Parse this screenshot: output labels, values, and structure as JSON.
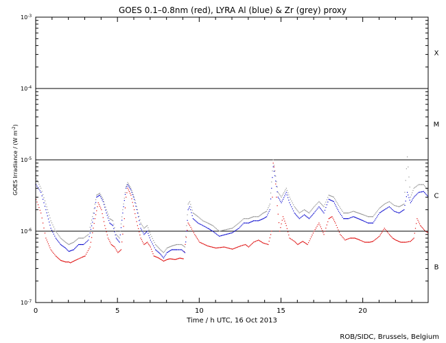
{
  "chart_data": {
    "type": "scatter",
    "title": "GOES 0.1–0.8nm (red), LYRA Al (blue) & Zr (grey) proxy",
    "xlabel": "Time / h UTC, 16 Oct 2013",
    "ylabel_base": "GOES Irradiance / (W m",
    "ylabel_sup": "-2",
    "ylabel_close": ")",
    "credit": "ROB/SIDC, Brussels, Belgium",
    "xlim": [
      0,
      24
    ],
    "ylim": [
      1e-07,
      0.001
    ],
    "yscale": "log",
    "x_ticks": [
      {
        "value": 0,
        "label": "0"
      },
      {
        "value": 5,
        "label": "5"
      },
      {
        "value": 10,
        "label": "10"
      },
      {
        "value": 15,
        "label": "15"
      },
      {
        "value": 20,
        "label": "20"
      }
    ],
    "y_ticks": [
      {
        "value": 1e-07,
        "base": "10",
        "exp": "-7"
      },
      {
        "value": 1e-06,
        "base": "10",
        "exp": "-6"
      },
      {
        "value": 1e-05,
        "base": "10",
        "exp": "-5"
      },
      {
        "value": 0.0001,
        "base": "10",
        "exp": "-4"
      },
      {
        "value": 0.001,
        "base": "10",
        "exp": "-3"
      }
    ],
    "flare_classes": [
      {
        "label": "B",
        "value": 3.2e-07
      },
      {
        "label": "C",
        "value": 3.2e-06
      },
      {
        "label": "M",
        "value": 3.2e-05
      },
      {
        "label": "X",
        "value": 0.00032
      }
    ],
    "threshold_lines": [
      1e-06,
      1e-05,
      0.0001
    ],
    "series": [
      {
        "name": "GOES 0.1–0.8nm",
        "color": "#dd0000",
        "points": [
          [
            0.0,
            2.8e-06
          ],
          [
            0.3,
            1.8e-06
          ],
          [
            0.6,
            8e-07
          ],
          [
            0.9,
            5.5e-07
          ],
          [
            1.2,
            4.5e-07
          ],
          [
            1.5,
            3.9e-07
          ],
          [
            1.8,
            3.7e-07
          ],
          [
            2.0,
            3.7e-07
          ],
          [
            2.1,
            3.6e-07
          ],
          [
            2.3,
            3.8e-07
          ],
          [
            2.5,
            4e-07
          ],
          [
            2.8,
            4.3e-07
          ],
          [
            3.0,
            4.5e-07
          ],
          [
            3.3,
            6e-07
          ],
          [
            3.6,
            1.5e-06
          ],
          [
            3.8,
            2.5e-06
          ],
          [
            4.0,
            2e-06
          ],
          [
            4.2,
            1.2e-06
          ],
          [
            4.4,
            8e-07
          ],
          [
            4.6,
            6.5e-07
          ],
          [
            4.8,
            6e-07
          ],
          [
            5.0,
            5e-07
          ],
          [
            5.2,
            5.5e-07
          ],
          [
            5.4,
            1.5e-06
          ],
          [
            5.5,
            3e-06
          ],
          [
            5.6,
            4e-06
          ],
          [
            5.8,
            3.2e-06
          ],
          [
            6.0,
            2e-06
          ],
          [
            6.2,
            1.2e-06
          ],
          [
            6.4,
            8e-07
          ],
          [
            6.6,
            6.5e-07
          ],
          [
            6.8,
            7e-07
          ],
          [
            7.0,
            6e-07
          ],
          [
            7.2,
            4.5e-07
          ],
          [
            7.5,
            4.2e-07
          ],
          [
            7.8,
            3.8e-07
          ],
          [
            8.0,
            4e-07
          ],
          [
            8.2,
            4.1e-07
          ],
          [
            8.5,
            4e-07
          ],
          [
            8.8,
            4.2e-07
          ],
          [
            9.0,
            4.1e-07
          ],
          [
            9.3,
            1.3e-06
          ],
          [
            9.4,
            1.2e-06
          ],
          [
            9.7,
            9e-07
          ],
          [
            10.0,
            7e-07
          ],
          [
            10.5,
            6.2e-07
          ],
          [
            11.0,
            5.8e-07
          ],
          [
            11.5,
            6e-07
          ],
          [
            12.0,
            5.6e-07
          ],
          [
            12.5,
            6.2e-07
          ],
          [
            12.8,
            6.5e-07
          ],
          [
            13.0,
            6e-07
          ],
          [
            13.3,
            7e-07
          ],
          [
            13.6,
            7.5e-07
          ],
          [
            13.9,
            6.8e-07
          ],
          [
            14.2,
            6.5e-07
          ],
          [
            14.4,
            1e-06
          ],
          [
            14.5,
            9e-06
          ],
          [
            14.6,
            7e-06
          ],
          [
            14.7,
            3e-06
          ],
          [
            14.9,
            1e-06
          ],
          [
            15.1,
            1.6e-06
          ],
          [
            15.3,
            1.2e-06
          ],
          [
            15.5,
            8e-07
          ],
          [
            15.8,
            7.2e-07
          ],
          [
            16.0,
            6.5e-07
          ],
          [
            16.3,
            7.2e-07
          ],
          [
            16.6,
            6.5e-07
          ],
          [
            17.0,
            1e-06
          ],
          [
            17.3,
            1.3e-06
          ],
          [
            17.6,
            9e-07
          ],
          [
            17.9,
            1.5e-06
          ],
          [
            18.1,
            1.6e-06
          ],
          [
            18.3,
            1.3e-06
          ],
          [
            18.6,
            9e-07
          ],
          [
            18.9,
            7.5e-07
          ],
          [
            19.2,
            8e-07
          ],
          [
            19.5,
            8e-07
          ],
          [
            19.8,
            7.5e-07
          ],
          [
            20.1,
            7e-07
          ],
          [
            20.4,
            7e-07
          ],
          [
            20.6,
            7.2e-07
          ],
          [
            21.0,
            8.5e-07
          ],
          [
            21.3,
            1.1e-06
          ],
          [
            21.6,
            9e-07
          ],
          [
            21.8,
            8e-07
          ],
          [
            22.0,
            7.5e-07
          ],
          [
            22.3,
            7e-07
          ],
          [
            22.6,
            7e-07
          ],
          [
            22.9,
            7.2e-07
          ],
          [
            23.1,
            8e-07
          ],
          [
            23.3,
            1.5e-06
          ],
          [
            23.5,
            1.2e-06
          ],
          [
            23.8,
            1e-06
          ],
          [
            24.0,
            9.5e-07
          ]
        ]
      },
      {
        "name": "LYRA Al",
        "color": "#0000cc",
        "points": [
          [
            0.0,
            4.5e-06
          ],
          [
            0.3,
            3.5e-06
          ],
          [
            0.6,
            2e-06
          ],
          [
            0.9,
            1.1e-06
          ],
          [
            1.2,
            8e-07
          ],
          [
            1.5,
            6.5e-07
          ],
          [
            1.8,
            5.8e-07
          ],
          [
            2.0,
            5.2e-07
          ],
          [
            2.3,
            5.5e-07
          ],
          [
            2.6,
            6.5e-07
          ],
          [
            2.9,
            6.5e-07
          ],
          [
            3.2,
            7.5e-07
          ],
          [
            3.5,
            1.5e-06
          ],
          [
            3.7,
            3e-06
          ],
          [
            3.9,
            3.2e-06
          ],
          [
            4.1,
            2.6e-06
          ],
          [
            4.3,
            1.8e-06
          ],
          [
            4.5,
            1.3e-06
          ],
          [
            4.7,
            1.2e-06
          ],
          [
            4.9,
            8e-07
          ],
          [
            5.1,
            7e-07
          ],
          [
            5.3,
            1.8e-06
          ],
          [
            5.5,
            4e-06
          ],
          [
            5.6,
            4.5e-06
          ],
          [
            5.8,
            3.8e-06
          ],
          [
            6.0,
            2.8e-06
          ],
          [
            6.2,
            1.8e-06
          ],
          [
            6.4,
            1.1e-06
          ],
          [
            6.6,
            9e-07
          ],
          [
            6.8,
            1e-06
          ],
          [
            7.0,
            7.5e-07
          ],
          [
            7.3,
            5.5e-07
          ],
          [
            7.6,
            4.8e-07
          ],
          [
            7.8,
            4.2e-07
          ],
          [
            8.0,
            5e-07
          ],
          [
            8.3,
            5.5e-07
          ],
          [
            8.6,
            5.5e-07
          ],
          [
            8.9,
            5.5e-07
          ],
          [
            9.1,
            5e-07
          ],
          [
            9.3,
            2e-06
          ],
          [
            9.4,
            2.2e-06
          ],
          [
            9.6,
            1.5e-06
          ],
          [
            9.9,
            1.3e-06
          ],
          [
            10.2,
            1.2e-06
          ],
          [
            10.5,
            1.1e-06
          ],
          [
            10.8,
            1e-06
          ],
          [
            11.2,
            8.5e-07
          ],
          [
            11.6,
            9e-07
          ],
          [
            12.0,
            9.5e-07
          ],
          [
            12.4,
            1.1e-06
          ],
          [
            12.7,
            1.3e-06
          ],
          [
            13.0,
            1.3e-06
          ],
          [
            13.3,
            1.4e-06
          ],
          [
            13.6,
            1.4e-06
          ],
          [
            13.9,
            1.5e-06
          ],
          [
            14.1,
            1.6e-06
          ],
          [
            14.3,
            2e-06
          ],
          [
            14.5,
            8e-06
          ],
          [
            14.6,
            6e-06
          ],
          [
            14.8,
            3e-06
          ],
          [
            15.0,
            2.5e-06
          ],
          [
            15.3,
            3.5e-06
          ],
          [
            15.5,
            2.5e-06
          ],
          [
            15.8,
            1.8e-06
          ],
          [
            16.1,
            1.5e-06
          ],
          [
            16.4,
            1.7e-06
          ],
          [
            16.7,
            1.5e-06
          ],
          [
            17.0,
            1.8e-06
          ],
          [
            17.3,
            2.2e-06
          ],
          [
            17.6,
            1.8e-06
          ],
          [
            17.9,
            2.8e-06
          ],
          [
            18.2,
            2.6e-06
          ],
          [
            18.5,
            1.9e-06
          ],
          [
            18.8,
            1.5e-06
          ],
          [
            19.1,
            1.5e-06
          ],
          [
            19.4,
            1.6e-06
          ],
          [
            19.7,
            1.5e-06
          ],
          [
            20.0,
            1.4e-06
          ],
          [
            20.3,
            1.3e-06
          ],
          [
            20.6,
            1.3e-06
          ],
          [
            21.0,
            1.8e-06
          ],
          [
            21.3,
            2e-06
          ],
          [
            21.6,
            2.2e-06
          ],
          [
            21.9,
            1.9e-06
          ],
          [
            22.2,
            1.8e-06
          ],
          [
            22.5,
            2e-06
          ],
          [
            22.7,
            3.5e-06
          ],
          [
            22.9,
            2.5e-06
          ],
          [
            23.1,
            3e-06
          ],
          [
            23.4,
            3.5e-06
          ],
          [
            23.7,
            3.6e-06
          ],
          [
            24.0,
            3e-06
          ]
        ]
      },
      {
        "name": "LYRA Zr",
        "color": "#909090",
        "points": [
          [
            0.0,
            5.5e-06
          ],
          [
            0.3,
            4e-06
          ],
          [
            0.6,
            2.4e-06
          ],
          [
            0.9,
            1.4e-06
          ],
          [
            1.2,
            1e-06
          ],
          [
            1.5,
            8e-07
          ],
          [
            1.8,
            7e-07
          ],
          [
            2.0,
            6.5e-07
          ],
          [
            2.3,
            7e-07
          ],
          [
            2.6,
            8e-07
          ],
          [
            2.9,
            8e-07
          ],
          [
            3.2,
            9e-07
          ],
          [
            3.5,
            1.8e-06
          ],
          [
            3.7,
            3.2e-06
          ],
          [
            3.9,
            3.4e-06
          ],
          [
            4.1,
            2.8e-06
          ],
          [
            4.3,
            2e-06
          ],
          [
            4.5,
            1.5e-06
          ],
          [
            4.7,
            1.4e-06
          ],
          [
            4.9,
            9e-07
          ],
          [
            5.1,
            8e-07
          ],
          [
            5.3,
            2e-06
          ],
          [
            5.5,
            4.2e-06
          ],
          [
            5.6,
            4.8e-06
          ],
          [
            5.8,
            4e-06
          ],
          [
            6.0,
            3e-06
          ],
          [
            6.2,
            2e-06
          ],
          [
            6.4,
            1.3e-06
          ],
          [
            6.6,
            1.1e-06
          ],
          [
            6.8,
            1.2e-06
          ],
          [
            7.0,
            9e-07
          ],
          [
            7.3,
            6.5e-07
          ],
          [
            7.6,
            5.5e-07
          ],
          [
            7.8,
            5e-07
          ],
          [
            8.0,
            5.8e-07
          ],
          [
            8.3,
            6.2e-07
          ],
          [
            8.6,
            6.5e-07
          ],
          [
            8.9,
            6.5e-07
          ],
          [
            9.1,
            6e-07
          ],
          [
            9.3,
            2.4e-06
          ],
          [
            9.4,
            2.6e-06
          ],
          [
            9.6,
            1.8e-06
          ],
          [
            9.9,
            1.6e-06
          ],
          [
            10.2,
            1.4e-06
          ],
          [
            10.5,
            1.3e-06
          ],
          [
            10.8,
            1.2e-06
          ],
          [
            11.2,
            1e-06
          ],
          [
            11.6,
            1.05e-06
          ],
          [
            12.0,
            1.1e-06
          ],
          [
            12.4,
            1.3e-06
          ],
          [
            12.7,
            1.5e-06
          ],
          [
            13.0,
            1.5e-06
          ],
          [
            13.3,
            1.6e-06
          ],
          [
            13.6,
            1.6e-06
          ],
          [
            13.9,
            1.8e-06
          ],
          [
            14.1,
            1.9e-06
          ],
          [
            14.3,
            2.4e-06
          ],
          [
            14.5,
            1e-05
          ],
          [
            14.6,
            7e-06
          ],
          [
            14.8,
            3.5e-06
          ],
          [
            15.0,
            3e-06
          ],
          [
            15.3,
            4e-06
          ],
          [
            15.5,
            3e-06
          ],
          [
            15.8,
            2.2e-06
          ],
          [
            16.1,
            1.8e-06
          ],
          [
            16.4,
            2e-06
          ],
          [
            16.7,
            1.8e-06
          ],
          [
            17.0,
            2.2e-06
          ],
          [
            17.3,
            2.6e-06
          ],
          [
            17.6,
            2.2e-06
          ],
          [
            17.9,
            3.2e-06
          ],
          [
            18.2,
            3e-06
          ],
          [
            18.5,
            2.3e-06
          ],
          [
            18.8,
            1.8e-06
          ],
          [
            19.1,
            1.8e-06
          ],
          [
            19.4,
            1.9e-06
          ],
          [
            19.7,
            1.8e-06
          ],
          [
            20.0,
            1.7e-06
          ],
          [
            20.3,
            1.6e-06
          ],
          [
            20.6,
            1.6e-06
          ],
          [
            21.0,
            2.1e-06
          ],
          [
            21.3,
            2.4e-06
          ],
          [
            21.6,
            2.6e-06
          ],
          [
            21.9,
            2.3e-06
          ],
          [
            22.2,
            2.2e-06
          ],
          [
            22.5,
            2.4e-06
          ],
          [
            22.7,
            1.1e-05
          ],
          [
            22.9,
            3e-06
          ],
          [
            23.1,
            4e-06
          ],
          [
            23.4,
            4.5e-06
          ],
          [
            23.7,
            4.5e-06
          ],
          [
            24.0,
            3.6e-06
          ]
        ]
      }
    ]
  }
}
